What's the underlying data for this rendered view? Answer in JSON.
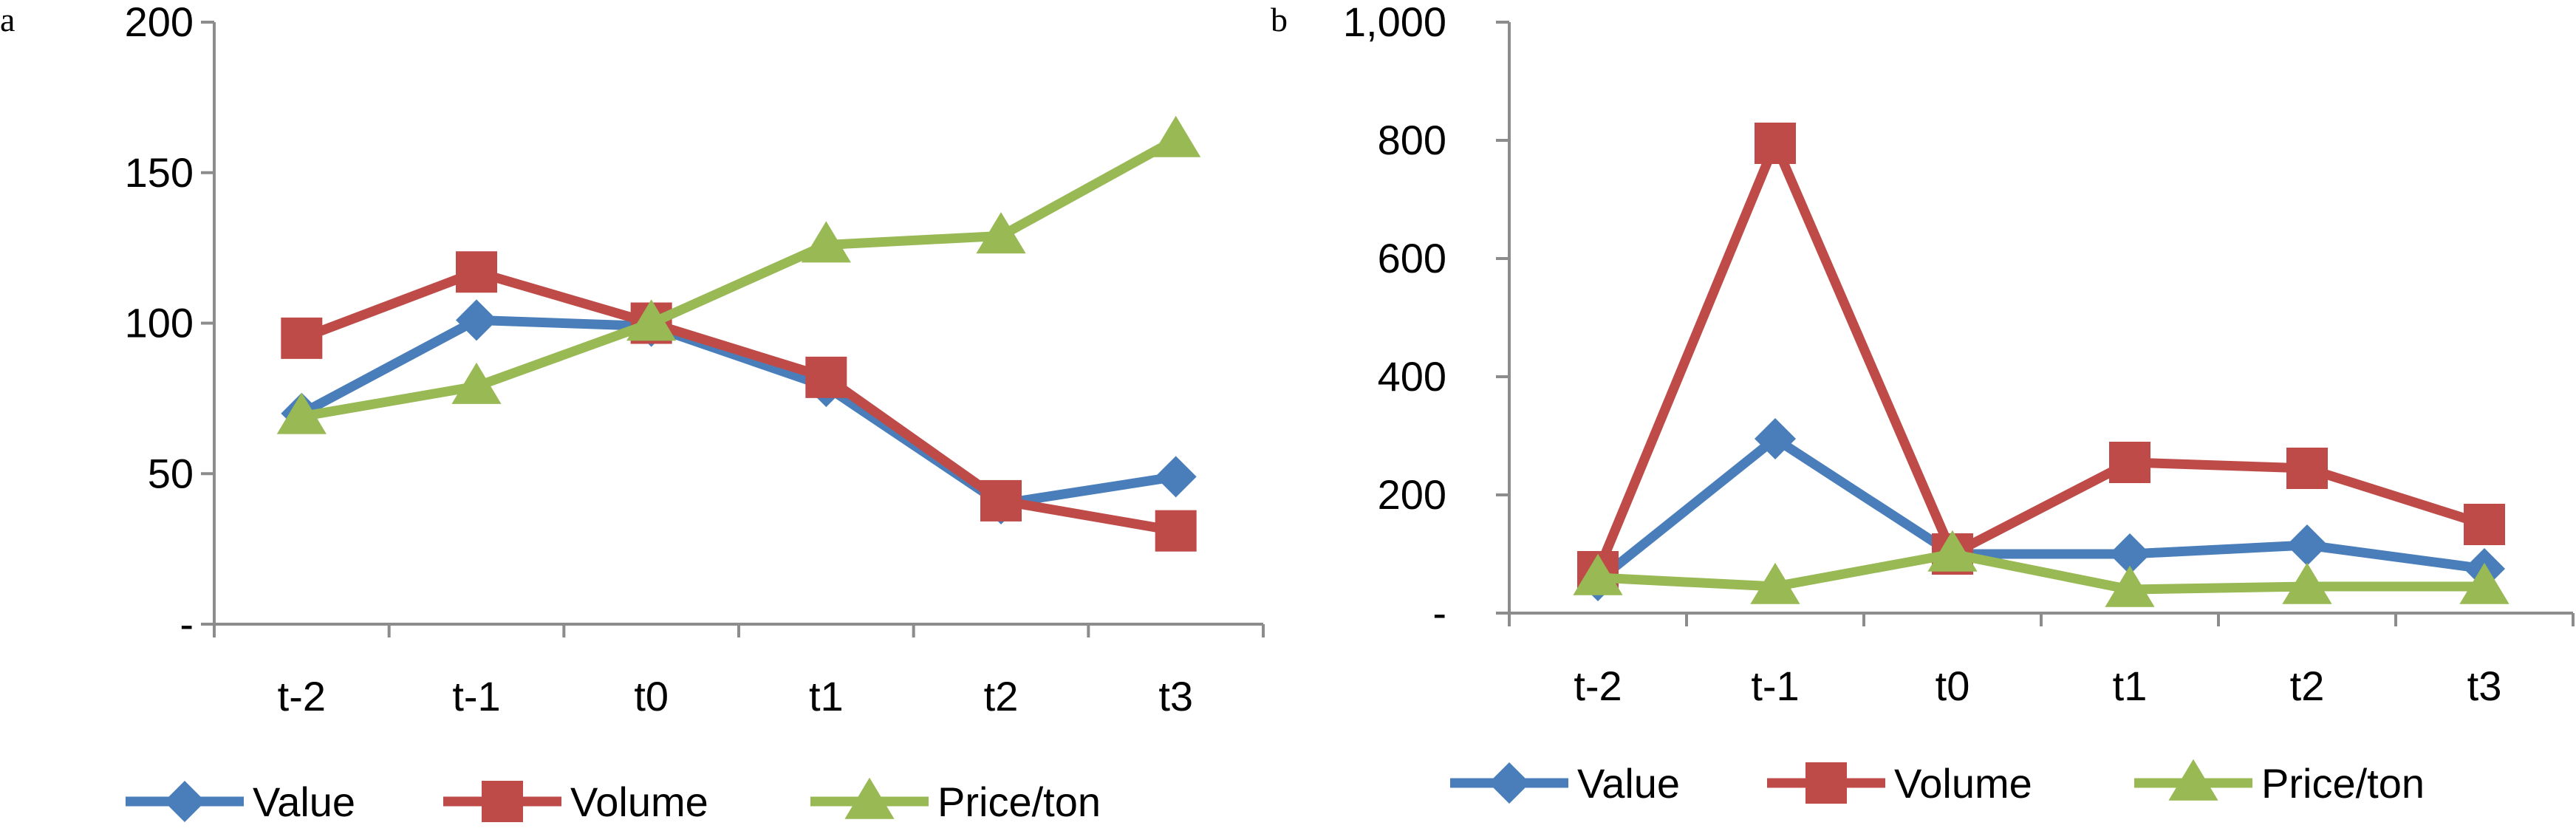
{
  "chart_data": [
    {
      "type": "line",
      "panel_label": "a",
      "categories": [
        "t-2",
        "t-1",
        "t0",
        "t1",
        "t2",
        "t3"
      ],
      "y_ticks": [
        "-",
        "50",
        "100",
        "150",
        "200"
      ],
      "ylim": [
        0,
        200
      ],
      "grid": false,
      "legend_position": "bottom",
      "series": [
        {
          "name": "Value",
          "marker": "diamond",
          "color": "#4a7ebb",
          "values": [
            70,
            101,
            99,
            79,
            40,
            49
          ]
        },
        {
          "name": "Volume",
          "marker": "square",
          "color": "#be4b48",
          "values": [
            95,
            117,
            100,
            82,
            41,
            31
          ]
        },
        {
          "name": "Price/ton",
          "marker": "triangle",
          "color": "#98b954",
          "values": [
            69,
            79,
            100,
            126,
            129,
            161
          ]
        }
      ]
    },
    {
      "type": "line",
      "panel_label": "b",
      "categories": [
        "t-2",
        "t-1",
        "t0",
        "t1",
        "t2",
        "t3"
      ],
      "y_ticks": [
        "-",
        "200",
        "400",
        "600",
        "800",
        "1,000"
      ],
      "ylim": [
        0,
        1000
      ],
      "grid": false,
      "legend_position": "bottom",
      "series": [
        {
          "name": "Value",
          "marker": "diamond",
          "color": "#4a7ebb",
          "values": [
            55,
            295,
            100,
            100,
            115,
            75
          ]
        },
        {
          "name": "Volume",
          "marker": "square",
          "color": "#be4b48",
          "values": [
            70,
            795,
            100,
            255,
            245,
            150
          ]
        },
        {
          "name": "Price/ton",
          "marker": "triangle",
          "color": "#98b954",
          "values": [
            60,
            45,
            100,
            40,
            45,
            45
          ]
        }
      ]
    }
  ]
}
